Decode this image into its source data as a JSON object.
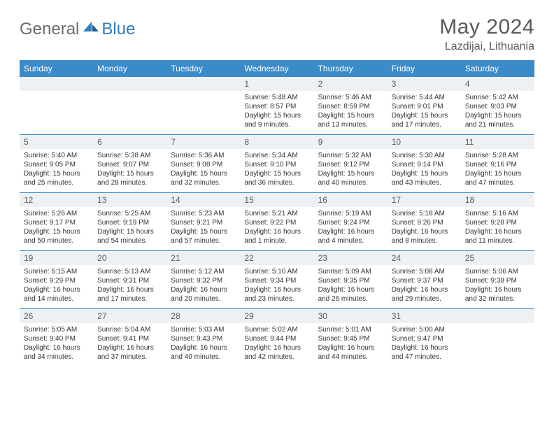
{
  "brand": {
    "part1": "General",
    "part2": "Blue"
  },
  "title": "May 2024",
  "location": "Lazdijai, Lithuania",
  "colors": {
    "header_bar": "#3b8bc9",
    "daynum_bg": "#eef1f4",
    "text_muted": "#5a5a5a",
    "text_body": "#333333",
    "brand_gray": "#6b6b6b",
    "brand_blue": "#2f7bbf"
  },
  "weekdays": [
    "Sunday",
    "Monday",
    "Tuesday",
    "Wednesday",
    "Thursday",
    "Friday",
    "Saturday"
  ],
  "weeks": [
    [
      null,
      null,
      null,
      {
        "n": "1",
        "sr": "5:48 AM",
        "ss": "8:57 PM",
        "dl": "15 hours and 9 minutes."
      },
      {
        "n": "2",
        "sr": "5:46 AM",
        "ss": "8:59 PM",
        "dl": "15 hours and 13 minutes."
      },
      {
        "n": "3",
        "sr": "5:44 AM",
        "ss": "9:01 PM",
        "dl": "15 hours and 17 minutes."
      },
      {
        "n": "4",
        "sr": "5:42 AM",
        "ss": "9:03 PM",
        "dl": "15 hours and 21 minutes."
      }
    ],
    [
      {
        "n": "5",
        "sr": "5:40 AM",
        "ss": "9:05 PM",
        "dl": "15 hours and 25 minutes."
      },
      {
        "n": "6",
        "sr": "5:38 AM",
        "ss": "9:07 PM",
        "dl": "15 hours and 28 minutes."
      },
      {
        "n": "7",
        "sr": "5:36 AM",
        "ss": "9:08 PM",
        "dl": "15 hours and 32 minutes."
      },
      {
        "n": "8",
        "sr": "5:34 AM",
        "ss": "9:10 PM",
        "dl": "15 hours and 36 minutes."
      },
      {
        "n": "9",
        "sr": "5:32 AM",
        "ss": "9:12 PM",
        "dl": "15 hours and 40 minutes."
      },
      {
        "n": "10",
        "sr": "5:30 AM",
        "ss": "9:14 PM",
        "dl": "15 hours and 43 minutes."
      },
      {
        "n": "11",
        "sr": "5:28 AM",
        "ss": "9:16 PM",
        "dl": "15 hours and 47 minutes."
      }
    ],
    [
      {
        "n": "12",
        "sr": "5:26 AM",
        "ss": "9:17 PM",
        "dl": "15 hours and 50 minutes."
      },
      {
        "n": "13",
        "sr": "5:25 AM",
        "ss": "9:19 PM",
        "dl": "15 hours and 54 minutes."
      },
      {
        "n": "14",
        "sr": "5:23 AM",
        "ss": "9:21 PM",
        "dl": "15 hours and 57 minutes."
      },
      {
        "n": "15",
        "sr": "5:21 AM",
        "ss": "9:22 PM",
        "dl": "16 hours and 1 minute."
      },
      {
        "n": "16",
        "sr": "5:19 AM",
        "ss": "9:24 PM",
        "dl": "16 hours and 4 minutes."
      },
      {
        "n": "17",
        "sr": "5:18 AM",
        "ss": "9:26 PM",
        "dl": "16 hours and 8 minutes."
      },
      {
        "n": "18",
        "sr": "5:16 AM",
        "ss": "9:28 PM",
        "dl": "16 hours and 11 minutes."
      }
    ],
    [
      {
        "n": "19",
        "sr": "5:15 AM",
        "ss": "9:29 PM",
        "dl": "16 hours and 14 minutes."
      },
      {
        "n": "20",
        "sr": "5:13 AM",
        "ss": "9:31 PM",
        "dl": "16 hours and 17 minutes."
      },
      {
        "n": "21",
        "sr": "5:12 AM",
        "ss": "9:32 PM",
        "dl": "16 hours and 20 minutes."
      },
      {
        "n": "22",
        "sr": "5:10 AM",
        "ss": "9:34 PM",
        "dl": "16 hours and 23 minutes."
      },
      {
        "n": "23",
        "sr": "5:09 AM",
        "ss": "9:35 PM",
        "dl": "16 hours and 26 minutes."
      },
      {
        "n": "24",
        "sr": "5:08 AM",
        "ss": "9:37 PM",
        "dl": "16 hours and 29 minutes."
      },
      {
        "n": "25",
        "sr": "5:06 AM",
        "ss": "9:38 PM",
        "dl": "16 hours and 32 minutes."
      }
    ],
    [
      {
        "n": "26",
        "sr": "5:05 AM",
        "ss": "9:40 PM",
        "dl": "16 hours and 34 minutes."
      },
      {
        "n": "27",
        "sr": "5:04 AM",
        "ss": "9:41 PM",
        "dl": "16 hours and 37 minutes."
      },
      {
        "n": "28",
        "sr": "5:03 AM",
        "ss": "9:43 PM",
        "dl": "16 hours and 40 minutes."
      },
      {
        "n": "29",
        "sr": "5:02 AM",
        "ss": "9:44 PM",
        "dl": "16 hours and 42 minutes."
      },
      {
        "n": "30",
        "sr": "5:01 AM",
        "ss": "9:45 PM",
        "dl": "16 hours and 44 minutes."
      },
      {
        "n": "31",
        "sr": "5:00 AM",
        "ss": "9:47 PM",
        "dl": "16 hours and 47 minutes."
      },
      null
    ]
  ],
  "labels": {
    "sunrise": "Sunrise:",
    "sunset": "Sunset:",
    "daylight": "Daylight:"
  }
}
